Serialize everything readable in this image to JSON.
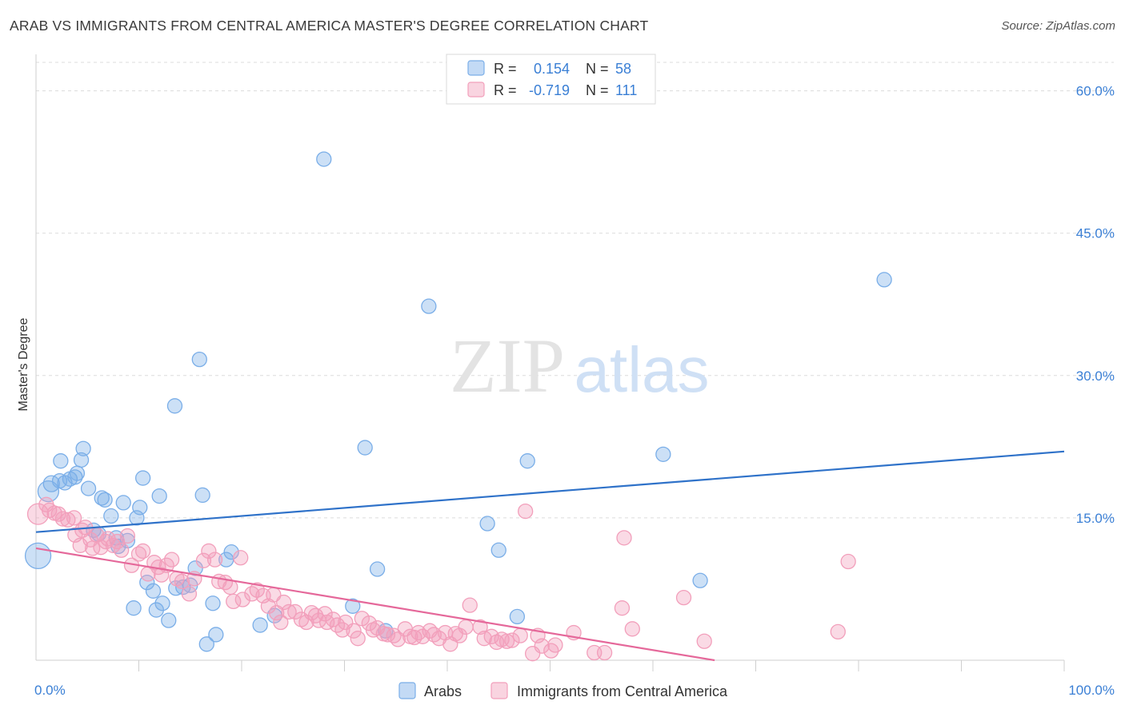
{
  "title": "ARAB VS IMMIGRANTS FROM CENTRAL AMERICA MASTER'S DEGREE CORRELATION CHART",
  "source": "Source: ZipAtlas.com",
  "watermark": {
    "zip": "ZIP",
    "atlas": "atlas"
  },
  "legend": {
    "rows": [
      {
        "r_label": "R =",
        "r_value": "0.154",
        "n_label": "N =",
        "n_value": "58",
        "color": "#7aaee8"
      },
      {
        "r_label": "R =",
        "r_value": "-0.719",
        "n_label": "N =",
        "n_value": "111",
        "color": "#f29fbb"
      }
    ]
  },
  "bottom_legend": [
    "Arabs",
    "Immigrants from Central America"
  ],
  "chart_data": {
    "type": "scatter",
    "ylabel": "Master's Degree",
    "xlim": [
      0,
      100
    ],
    "ylim": [
      0,
      63
    ],
    "y_ticks": [
      {
        "value": 15,
        "label": "15.0%"
      },
      {
        "value": 30,
        "label": "30.0%"
      },
      {
        "value": 45,
        "label": "45.0%"
      },
      {
        "value": 60,
        "label": "60.0%"
      }
    ],
    "x_tick_labels": [
      {
        "value": 0,
        "label": "0.0%"
      },
      {
        "value": 100,
        "label": "100.0%"
      }
    ],
    "x_minor_ticks": [
      10,
      20,
      30,
      40,
      50,
      60,
      70,
      80,
      90,
      100
    ],
    "grid": true,
    "series": [
      {
        "name": "Arabs",
        "color": "#7aaee8",
        "trend": [
          [
            0,
            13.5
          ],
          [
            100,
            22.0
          ]
        ],
        "points": [
          [
            0.2,
            11.0,
            16
          ],
          [
            1.2,
            17.8,
            13
          ],
          [
            1.5,
            18.6,
            10
          ],
          [
            2.3,
            18.9,
            9
          ],
          [
            2.4,
            21.0,
            9
          ],
          [
            2.8,
            18.7,
            9
          ],
          [
            3.3,
            19.1,
            9
          ],
          [
            3.8,
            19.3,
            9
          ],
          [
            4.0,
            19.7,
            9
          ],
          [
            4.4,
            21.1,
            9
          ],
          [
            4.6,
            22.3,
            9
          ],
          [
            5.1,
            18.1,
            9
          ],
          [
            5.6,
            13.7,
            9
          ],
          [
            6.1,
            13.3,
            9
          ],
          [
            6.4,
            17.1,
            9
          ],
          [
            6.7,
            16.9,
            9
          ],
          [
            7.3,
            15.2,
            9
          ],
          [
            7.8,
            12.9,
            9
          ],
          [
            8.0,
            12.0,
            9
          ],
          [
            8.5,
            16.6,
            9
          ],
          [
            8.9,
            12.6,
            9
          ],
          [
            9.5,
            5.5,
            9
          ],
          [
            9.8,
            15.0,
            9
          ],
          [
            10.1,
            16.1,
            9
          ],
          [
            10.4,
            19.2,
            9
          ],
          [
            10.8,
            8.2,
            9
          ],
          [
            11.4,
            7.3,
            9
          ],
          [
            11.7,
            5.3,
            9
          ],
          [
            12.0,
            17.3,
            9
          ],
          [
            12.3,
            6.0,
            9
          ],
          [
            12.9,
            4.2,
            9
          ],
          [
            13.5,
            26.8,
            9
          ],
          [
            13.6,
            7.6,
            9
          ],
          [
            14.3,
            7.7,
            9
          ],
          [
            15.0,
            7.9,
            9
          ],
          [
            15.5,
            9.7,
            9
          ],
          [
            15.9,
            31.7,
            9
          ],
          [
            16.2,
            17.4,
            9
          ],
          [
            16.6,
            1.7,
            9
          ],
          [
            17.2,
            6.0,
            9
          ],
          [
            17.5,
            2.7,
            9
          ],
          [
            18.5,
            10.6,
            9
          ],
          [
            19.0,
            11.4,
            9
          ],
          [
            21.8,
            3.7,
            9
          ],
          [
            23.2,
            4.7,
            9
          ],
          [
            28.0,
            52.8,
            9
          ],
          [
            30.8,
            5.7,
            9
          ],
          [
            32.0,
            22.4,
            9
          ],
          [
            33.2,
            9.6,
            9
          ],
          [
            34.0,
            3.1,
            9
          ],
          [
            38.2,
            37.3,
            9
          ],
          [
            43.9,
            14.4,
            9
          ],
          [
            45.0,
            11.6,
            9
          ],
          [
            46.8,
            4.6,
            9
          ],
          [
            47.8,
            21.0,
            9
          ],
          [
            61.0,
            21.7,
            9
          ],
          [
            64.6,
            8.4,
            9
          ],
          [
            82.5,
            40.1,
            9
          ]
        ]
      },
      {
        "name": "Immigrants from Central America",
        "color": "#f29fbb",
        "trend": [
          [
            0,
            11.8
          ],
          [
            66,
            0.0
          ]
        ],
        "points": [
          [
            0.2,
            15.4,
            13
          ],
          [
            1.0,
            16.4,
            9
          ],
          [
            1.3,
            15.8,
            9
          ],
          [
            1.8,
            15.5,
            9
          ],
          [
            2.2,
            15.4,
            9
          ],
          [
            2.6,
            14.9,
            9
          ],
          [
            3.1,
            14.8,
            9
          ],
          [
            3.7,
            15.0,
            9
          ],
          [
            3.8,
            13.2,
            9
          ],
          [
            4.3,
            12.1,
            9
          ],
          [
            4.5,
            13.7,
            9
          ],
          [
            4.8,
            14.0,
            9
          ],
          [
            5.3,
            12.7,
            9
          ],
          [
            5.5,
            11.8,
            9
          ],
          [
            5.9,
            13.2,
            9
          ],
          [
            6.3,
            11.9,
            9
          ],
          [
            6.8,
            12.5,
            9
          ],
          [
            7.0,
            12.8,
            9
          ],
          [
            7.5,
            12.1,
            9
          ],
          [
            7.9,
            12.5,
            9
          ],
          [
            8.3,
            11.6,
            9
          ],
          [
            8.9,
            13.1,
            9
          ],
          [
            9.3,
            10.0,
            9
          ],
          [
            10.0,
            11.2,
            9
          ],
          [
            10.4,
            11.5,
            9
          ],
          [
            10.9,
            9.1,
            9
          ],
          [
            11.5,
            10.3,
            9
          ],
          [
            11.9,
            9.8,
            9
          ],
          [
            12.2,
            9.0,
            9
          ],
          [
            12.7,
            10.0,
            9
          ],
          [
            13.2,
            10.6,
            9
          ],
          [
            13.7,
            8.6,
            9
          ],
          [
            14.2,
            8.3,
            9
          ],
          [
            14.9,
            7.0,
            9
          ],
          [
            15.4,
            8.6,
            9
          ],
          [
            16.3,
            10.5,
            9
          ],
          [
            16.8,
            11.5,
            9
          ],
          [
            17.4,
            10.6,
            9
          ],
          [
            17.8,
            8.3,
            9
          ],
          [
            18.4,
            8.2,
            9
          ],
          [
            18.9,
            7.7,
            9
          ],
          [
            19.2,
            6.2,
            9
          ],
          [
            19.9,
            10.8,
            9
          ],
          [
            20.1,
            6.4,
            9
          ],
          [
            21.0,
            7.0,
            9
          ],
          [
            21.5,
            7.4,
            9
          ],
          [
            22.1,
            6.8,
            9
          ],
          [
            22.6,
            5.7,
            9
          ],
          [
            23.1,
            6.9,
            9
          ],
          [
            23.4,
            5.0,
            9
          ],
          [
            23.8,
            4.0,
            9
          ],
          [
            24.1,
            6.1,
            9
          ],
          [
            24.6,
            5.1,
            9
          ],
          [
            25.2,
            5.1,
            9
          ],
          [
            25.8,
            4.3,
            9
          ],
          [
            26.3,
            4.0,
            9
          ],
          [
            26.8,
            5.0,
            9
          ],
          [
            27.2,
            4.7,
            9
          ],
          [
            27.5,
            4.2,
            9
          ],
          [
            28.1,
            4.9,
            9
          ],
          [
            28.3,
            4.0,
            9
          ],
          [
            28.9,
            4.3,
            9
          ],
          [
            29.3,
            3.7,
            9
          ],
          [
            29.8,
            3.2,
            9
          ],
          [
            30.1,
            4.0,
            9
          ],
          [
            30.9,
            3.1,
            9
          ],
          [
            31.3,
            2.3,
            9
          ],
          [
            31.7,
            4.4,
            9
          ],
          [
            32.4,
            3.9,
            9
          ],
          [
            32.8,
            3.2,
            9
          ],
          [
            33.2,
            3.4,
            9
          ],
          [
            33.8,
            2.8,
            9
          ],
          [
            34.2,
            2.7,
            9
          ],
          [
            34.8,
            2.6,
            9
          ],
          [
            35.2,
            2.2,
            9
          ],
          [
            35.9,
            3.3,
            9
          ],
          [
            36.4,
            2.5,
            9
          ],
          [
            36.8,
            2.4,
            9
          ],
          [
            37.2,
            2.9,
            9
          ],
          [
            37.6,
            2.5,
            9
          ],
          [
            38.3,
            3.1,
            9
          ],
          [
            38.7,
            2.7,
            9
          ],
          [
            39.2,
            2.3,
            9
          ],
          [
            39.8,
            2.9,
            9
          ],
          [
            40.3,
            1.7,
            9
          ],
          [
            40.8,
            2.8,
            9
          ],
          [
            41.2,
            2.6,
            9
          ],
          [
            41.8,
            3.5,
            9
          ],
          [
            42.2,
            5.8,
            9
          ],
          [
            43.2,
            3.5,
            9
          ],
          [
            43.6,
            2.3,
            9
          ],
          [
            44.3,
            2.5,
            9
          ],
          [
            44.8,
            1.9,
            9
          ],
          [
            45.3,
            2.2,
            9
          ],
          [
            45.8,
            2.0,
            9
          ],
          [
            46.3,
            2.1,
            9
          ],
          [
            47.1,
            2.6,
            9
          ],
          [
            47.6,
            15.7,
            9
          ],
          [
            48.3,
            0.7,
            9
          ],
          [
            48.8,
            2.6,
            9
          ],
          [
            49.2,
            1.5,
            9
          ],
          [
            50.1,
            1.0,
            9
          ],
          [
            50.5,
            1.6,
            9
          ],
          [
            52.3,
            2.9,
            9
          ],
          [
            54.3,
            0.8,
            9
          ],
          [
            55.3,
            0.8,
            9
          ],
          [
            57.0,
            5.5,
            9
          ],
          [
            57.2,
            12.9,
            9
          ],
          [
            58.0,
            3.3,
            9
          ],
          [
            63.0,
            6.6,
            9
          ],
          [
            65.0,
            2.0,
            9
          ],
          [
            78.0,
            3.0,
            9
          ],
          [
            79.0,
            10.4,
            9
          ]
        ]
      }
    ]
  }
}
